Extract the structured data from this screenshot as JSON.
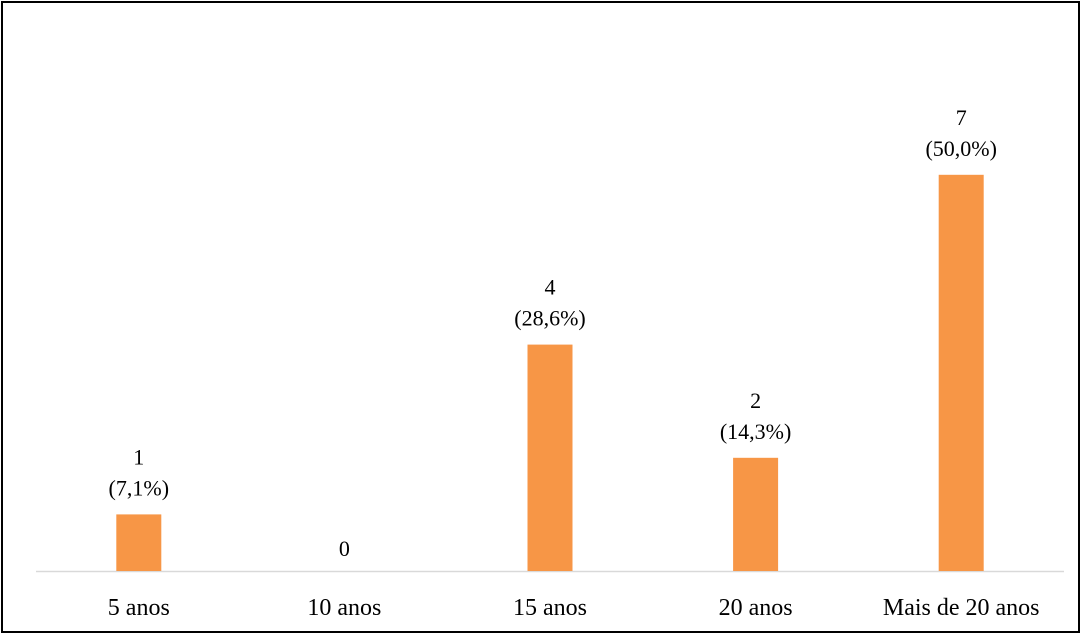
{
  "chart_data": {
    "type": "bar",
    "title": "",
    "xlabel": "",
    "ylabel": "",
    "categories": [
      "5 anos",
      "10 anos",
      "15 anos",
      "20 anos",
      "Mais de 20 anos"
    ],
    "values": [
      1,
      0,
      4,
      2,
      7
    ],
    "value_labels": [
      "1",
      "0",
      "4",
      "2",
      "7"
    ],
    "percent_labels": [
      "(7,1%)",
      "",
      "(28,6%)",
      "(14,3%)",
      "(50,0%)"
    ],
    "ylim": [
      0,
      8
    ],
    "grid": false,
    "legend": "none",
    "colors": {
      "bar": "#F79646",
      "axis": "#D9D9D9",
      "border": "#000000"
    }
  }
}
